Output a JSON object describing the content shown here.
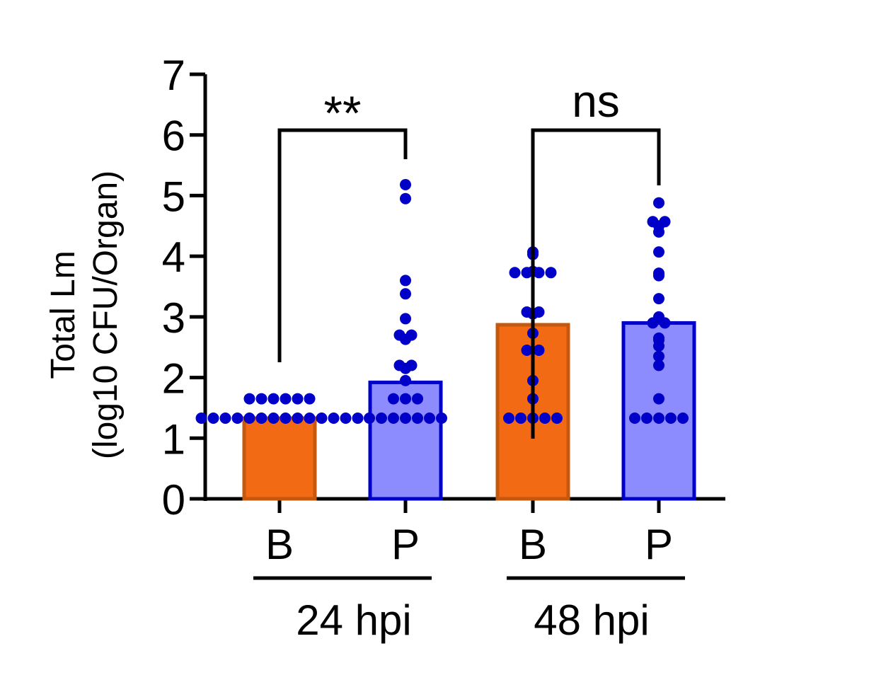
{
  "chart_data": {
    "type": "bar",
    "ylabel_line1": "Total Lm",
    "ylabel_line2": "(log10 CFU/Organ)",
    "ylim": [
      0,
      7
    ],
    "yticks": [
      "0",
      "1",
      "2",
      "3",
      "4",
      "5",
      "6",
      "7"
    ],
    "grid": false,
    "legend": "none",
    "categories": [
      "B",
      "P",
      "B",
      "P"
    ],
    "groups": [
      {
        "label": "24 hpi",
        "categories": [
          "B",
          "P"
        ]
      },
      {
        "label": "48 hpi",
        "categories": [
          "B",
          "P"
        ]
      }
    ],
    "bars": [
      {
        "category": "B",
        "group": "24 hpi",
        "value": 1.33,
        "fill": "#F26A13",
        "stroke": "#C4580E",
        "points": [
          1.65,
          1.65,
          1.65,
          1.65,
          1.65,
          1.65,
          1.33,
          1.33,
          1.33,
          1.33,
          1.33,
          1.33,
          1.33,
          1.33,
          1.33,
          1.33,
          1.33,
          1.33,
          1.33,
          1.33
        ]
      },
      {
        "category": "P",
        "group": "24 hpi",
        "value": 1.92,
        "fill": "#8C8CFF",
        "stroke": "#0000C8",
        "points": [
          5.18,
          4.95,
          3.6,
          3.38,
          2.97,
          2.7,
          2.7,
          2.63,
          2.2,
          2.2,
          2.15,
          1.95,
          1.65,
          1.65,
          1.65,
          1.33,
          1.33,
          1.33,
          1.33,
          1.33,
          1.33,
          1.33
        ]
      },
      {
        "category": "B",
        "group": "48 hpi",
        "value": 2.87,
        "fill": "#F26A13",
        "stroke": "#C4580E",
        "points": [
          4.07,
          4.03,
          3.75,
          3.73,
          3.73,
          3.73,
          3.73,
          3.08,
          3.08,
          3.05,
          2.73,
          2.45,
          2.45,
          1.95,
          1.65,
          1.33,
          1.33,
          1.33,
          1.33,
          1.33
        ]
      },
      {
        "category": "P",
        "group": "48 hpi",
        "value": 2.9,
        "fill": "#8C8CFF",
        "stroke": "#0000C8",
        "points": [
          4.88,
          4.57,
          4.57,
          4.5,
          4.4,
          4.07,
          3.72,
          3.68,
          3.3,
          3.0,
          2.9,
          2.9,
          2.65,
          2.62,
          2.52,
          2.35,
          2.2,
          1.65,
          1.33,
          1.33,
          1.33,
          1.33,
          1.33
        ]
      }
    ],
    "point_color": "#0000C8",
    "annotations": [
      {
        "text": "**",
        "from": 0,
        "to": 1
      },
      {
        "text": "ns",
        "from": 2,
        "to": 3
      }
    ]
  }
}
